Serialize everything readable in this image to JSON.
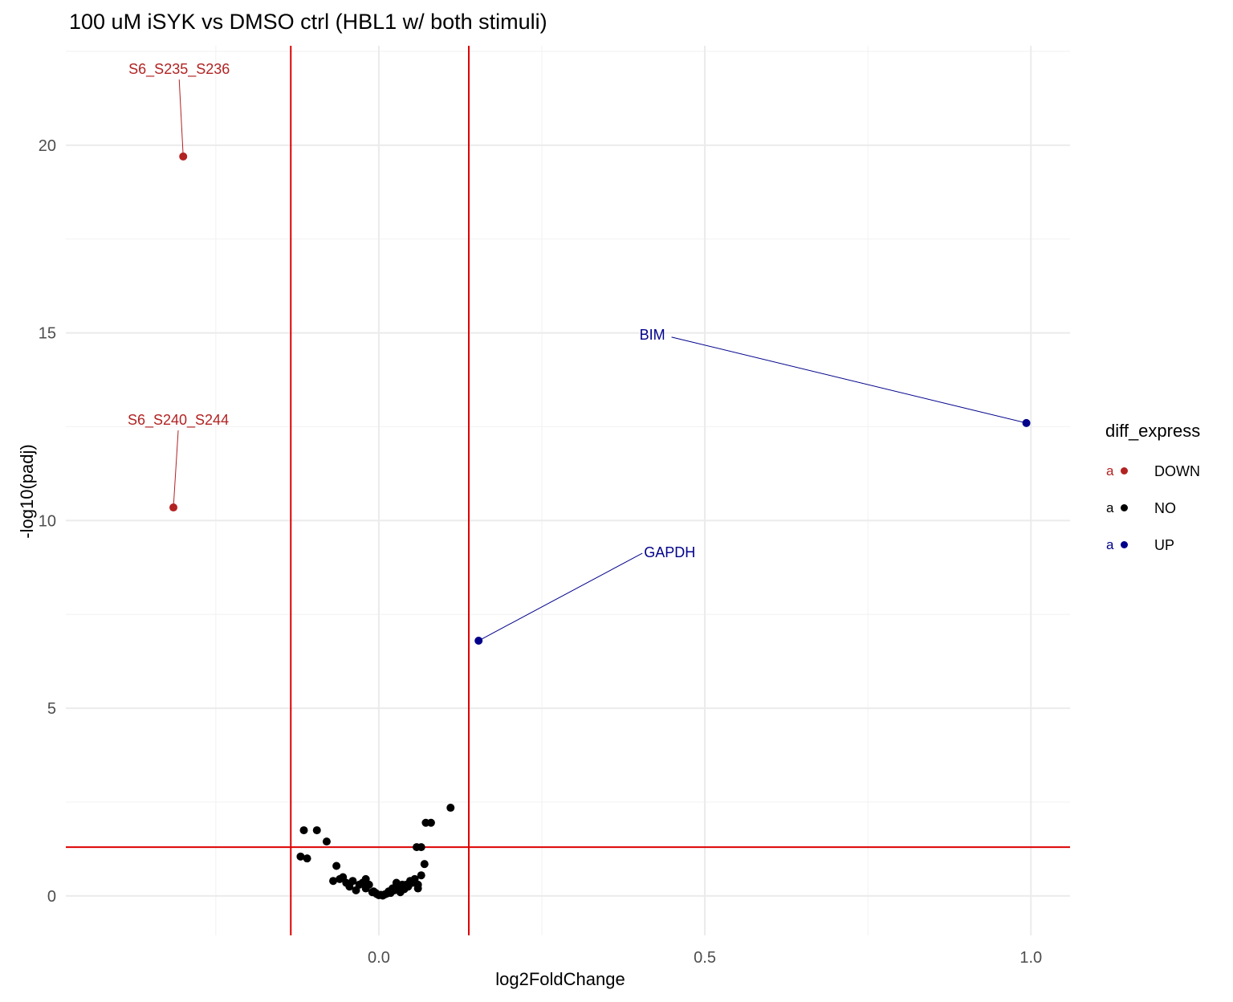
{
  "chart_data": {
    "type": "scatter",
    "title": "100 uM iSYK vs DMSO ctrl (HBL1 w/ both stimuli)",
    "xlabel": "log2FoldChange",
    "ylabel": "-log10(padj)",
    "xlim": [
      -0.48,
      1.06
    ],
    "ylim": [
      -1.05,
      22.65
    ],
    "x_ticks": [
      0.0,
      0.5,
      1.0
    ],
    "x_tick_labels": [
      "0.0",
      "0.5",
      "1.0"
    ],
    "y_ticks": [
      0,
      5,
      10,
      15,
      20
    ],
    "y_tick_labels": [
      "0",
      "5",
      "10",
      "15",
      "20"
    ],
    "grid": true,
    "reference_lines": {
      "vertical": [
        -0.135,
        0.138
      ],
      "horizontal": [
        1.3
      ],
      "color": "#dd0000"
    },
    "legend": {
      "title": "diff_express",
      "position": "right",
      "key_glyph": "a",
      "entries": [
        {
          "label": "DOWN",
          "color": "#b22222"
        },
        {
          "label": "NO",
          "color": "#000000"
        },
        {
          "label": "UP",
          "color": "#00008b"
        }
      ]
    },
    "series": [
      {
        "name": "DOWN",
        "color": "#b22222",
        "points": [
          [
            -0.3,
            19.7
          ],
          [
            -0.315,
            10.35
          ]
        ]
      },
      {
        "name": "NO",
        "color": "#000000",
        "points": [
          [
            -0.115,
            1.75
          ],
          [
            -0.095,
            1.75
          ],
          [
            -0.08,
            1.45
          ],
          [
            -0.11,
            1.0
          ],
          [
            -0.12,
            1.05
          ],
          [
            -0.065,
            0.8
          ],
          [
            -0.07,
            0.4
          ],
          [
            -0.06,
            0.45
          ],
          [
            -0.055,
            0.5
          ],
          [
            -0.05,
            0.35
          ],
          [
            -0.045,
            0.25
          ],
          [
            -0.04,
            0.4
          ],
          [
            -0.035,
            0.15
          ],
          [
            -0.03,
            0.3
          ],
          [
            -0.025,
            0.35
          ],
          [
            -0.02,
            0.45
          ],
          [
            -0.02,
            0.2
          ],
          [
            -0.015,
            0.3
          ],
          [
            -0.01,
            0.1
          ],
          [
            -0.008,
            0.12
          ],
          [
            -0.005,
            0.08
          ],
          [
            -0.003,
            0.05
          ],
          [
            0.0,
            0.02
          ],
          [
            0.003,
            0.03
          ],
          [
            0.006,
            0.01
          ],
          [
            0.009,
            0.04
          ],
          [
            0.012,
            0.06
          ],
          [
            0.015,
            0.12
          ],
          [
            0.018,
            0.08
          ],
          [
            0.021,
            0.2
          ],
          [
            0.024,
            0.15
          ],
          [
            0.027,
            0.35
          ],
          [
            0.03,
            0.25
          ],
          [
            0.033,
            0.1
          ],
          [
            0.036,
            0.3
          ],
          [
            0.039,
            0.18
          ],
          [
            0.042,
            0.3
          ],
          [
            0.045,
            0.25
          ],
          [
            0.048,
            0.4
          ],
          [
            0.052,
            0.35
          ],
          [
            0.055,
            0.45
          ],
          [
            0.06,
            0.3
          ],
          [
            0.065,
            0.55
          ],
          [
            0.07,
            0.85
          ],
          [
            0.065,
            1.3
          ],
          [
            0.072,
            1.95
          ],
          [
            0.08,
            1.95
          ],
          [
            0.11,
            2.35
          ],
          [
            0.058,
            1.3
          ],
          [
            0.06,
            0.2
          ]
        ]
      },
      {
        "name": "UP",
        "color": "#00008b",
        "points": [
          [
            0.153,
            6.8
          ],
          [
            0.993,
            12.6
          ]
        ]
      }
    ],
    "labels": [
      {
        "text": "S6_S235_S236",
        "color": "#b22222",
        "x": -0.3,
        "y": 19.7
      },
      {
        "text": "S6_S240_S244",
        "color": "#b22222",
        "x": -0.315,
        "y": 10.35
      },
      {
        "text": "BIM",
        "color": "#00008b",
        "x": 0.993,
        "y": 12.6
      },
      {
        "text": "GAPDH",
        "color": "#00008b",
        "x": 0.153,
        "y": 6.8
      }
    ]
  }
}
